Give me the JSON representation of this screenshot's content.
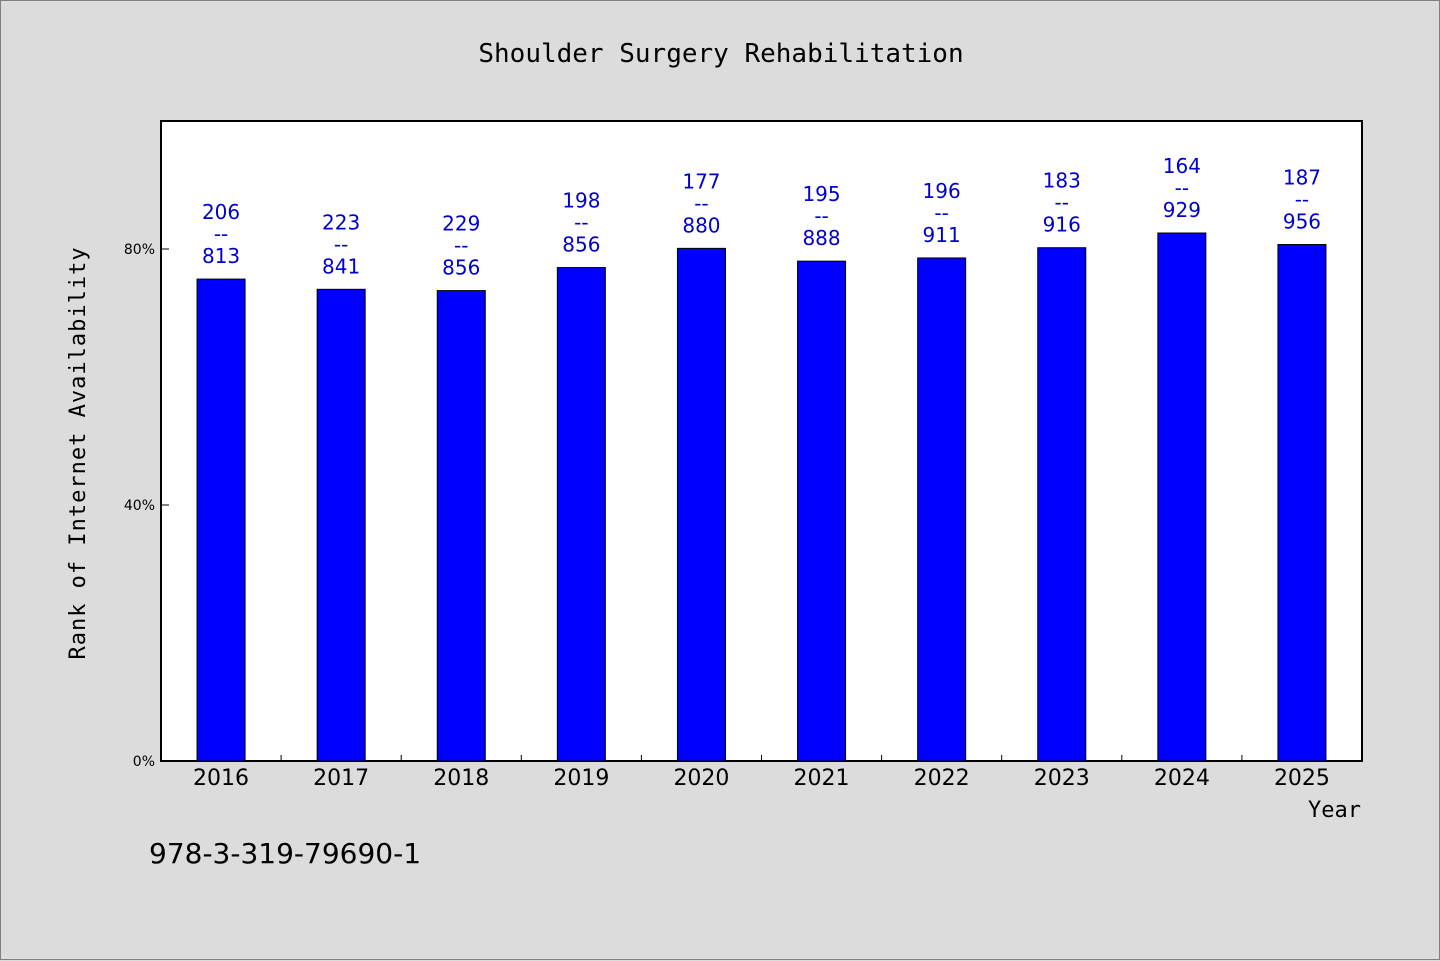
{
  "chart_data": {
    "type": "bar",
    "title": "Shoulder Surgery Rehabilitation",
    "xlabel": "Year",
    "ylabel": "Rank of Internet Availability",
    "categories": [
      "2016",
      "2017",
      "2018",
      "2019",
      "2020",
      "2021",
      "2022",
      "2023",
      "2024",
      "2025"
    ],
    "values": [
      75.3,
      73.7,
      73.5,
      77.1,
      80.1,
      78.1,
      78.6,
      80.2,
      82.5,
      80.7
    ],
    "value_unit": "%",
    "labels": [
      {
        "top": "206",
        "sep": "--",
        "bottom": "813"
      },
      {
        "top": "223",
        "sep": "--",
        "bottom": "841"
      },
      {
        "top": "229",
        "sep": "--",
        "bottom": "856"
      },
      {
        "top": "198",
        "sep": "--",
        "bottom": "856"
      },
      {
        "top": "177",
        "sep": "--",
        "bottom": "880"
      },
      {
        "top": "195",
        "sep": "--",
        "bottom": "888"
      },
      {
        "top": "196",
        "sep": "--",
        "bottom": "911"
      },
      {
        "top": "183",
        "sep": "--",
        "bottom": "916"
      },
      {
        "top": "164",
        "sep": "--",
        "bottom": "929"
      },
      {
        "top": "187",
        "sep": "--",
        "bottom": "956"
      }
    ],
    "ylim": [
      0,
      100
    ],
    "yticks": [
      {
        "value": 0,
        "label": "0%"
      },
      {
        "value": 40,
        "label": "40%"
      },
      {
        "value": 80,
        "label": "80%"
      }
    ],
    "grid": false,
    "colors": {
      "bar": "#0000ff",
      "bar_edge": "#000000",
      "label": "#0000cc",
      "plot_bg": "#ffffff",
      "page_bg": "#dcdcdc"
    }
  },
  "footnote": "978-3-319-79690-1"
}
